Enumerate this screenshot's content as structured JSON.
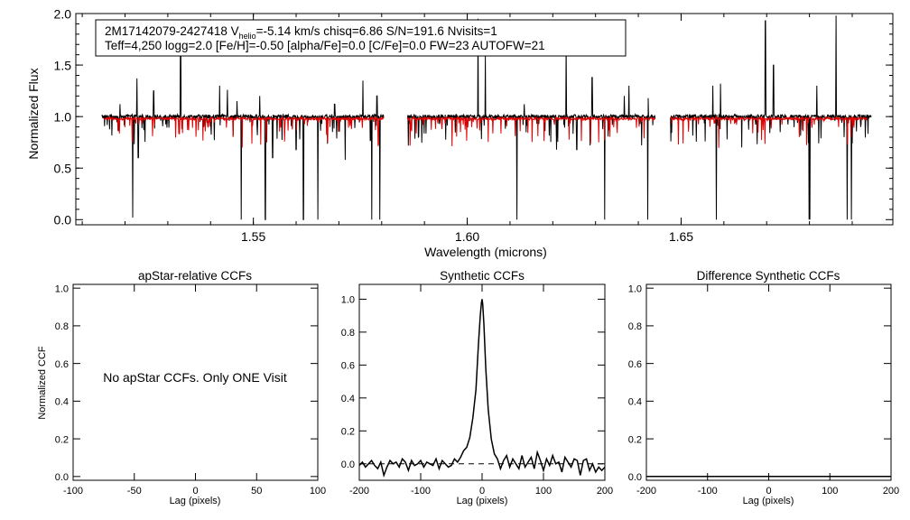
{
  "figure": {
    "info_line1_prefix": "2M17142079-2427418  V",
    "info_line1_sub": "helio",
    "info_line1_suffix": "=-5.14 km/s  chisq=6.86  S/N=191.6  Nvisits=1",
    "info_line2": "Teff=4,250 logg=2.0 [Fe/H]=-0.50 [alpha/Fe]=0.0 [C/Fe]=0.0 FW=23 AUTOFW=21",
    "no_ccf_message": "No apStar CCFs.  Only ONE Visit"
  },
  "chart_data": [
    {
      "id": "spectrum",
      "type": "line",
      "title": "",
      "xlabel": "Wavelength (microns)",
      "ylabel": "Normalized Flux",
      "xlim": [
        1.5085,
        1.6995
      ],
      "ylim": [
        -0.05,
        2.0
      ],
      "xticks": [
        1.55,
        1.6,
        1.65
      ],
      "xtick_labels": [
        "1.55",
        "1.60",
        "1.65"
      ],
      "yticks": [
        0.0,
        0.5,
        1.0,
        1.5,
        2.0
      ],
      "ytick_labels": [
        "0.0",
        "0.5",
        "1.0",
        "1.5",
        "2.0"
      ],
      "chip_ranges": [
        [
          1.5145,
          1.5805
        ],
        [
          1.586,
          1.644
        ],
        [
          1.6475,
          1.6945
        ]
      ],
      "series": [
        {
          "role": "observed",
          "color": "#000000",
          "x_range": [
            1.5145,
            1.6945
          ],
          "continuum": 1.0,
          "noise": 0.02
        },
        {
          "role": "model",
          "color": "#e00000",
          "x_range": [
            1.515,
            1.6935
          ],
          "continuum": 0.98,
          "noise": 0.012
        }
      ],
      "spikes_up": [
        [
          1.5188,
          1.12
        ],
        [
          1.5228,
          1.37
        ],
        [
          1.5267,
          1.25
        ],
        [
          1.533,
          1.68
        ],
        [
          1.5421,
          1.3
        ],
        [
          1.5439,
          1.26
        ],
        [
          1.5462,
          1.15
        ],
        [
          1.5515,
          1.2
        ],
        [
          1.569,
          1.12
        ],
        [
          1.5756,
          1.35
        ],
        [
          1.5789,
          1.2
        ],
        [
          1.6025,
          1.95
        ],
        [
          1.6042,
          1.6
        ],
        [
          1.6133,
          1.12
        ],
        [
          1.6231,
          1.72
        ],
        [
          1.6292,
          1.38
        ],
        [
          1.6367,
          1.2
        ],
        [
          1.6378,
          1.3
        ],
        [
          1.6423,
          1.18
        ],
        [
          1.6574,
          1.3
        ],
        [
          1.6592,
          1.32
        ],
        [
          1.6697,
          1.93
        ],
        [
          1.6716,
          1.5
        ],
        [
          1.6817,
          1.3
        ],
        [
          1.6862,
          1.98
        ],
        [
          1.6888,
          1.88
        ]
      ],
      "spikes_down": [
        [
          1.5218,
          0.02
        ],
        [
          1.5231,
          0.6
        ],
        [
          1.5472,
          0.0
        ],
        [
          1.5528,
          0.0
        ],
        [
          1.5545,
          0.6
        ],
        [
          1.56,
          0.68
        ],
        [
          1.5617,
          0.0
        ],
        [
          1.5651,
          0.0
        ],
        [
          1.5715,
          0.58
        ],
        [
          1.5777,
          0.0
        ],
        [
          1.5796,
          0.0
        ],
        [
          1.5809,
          0.0
        ],
        [
          1.6116,
          0.0
        ],
        [
          1.6209,
          0.68
        ],
        [
          1.6256,
          0.68
        ],
        [
          1.6321,
          0.0
        ],
        [
          1.6422,
          0.0
        ],
        [
          1.6582,
          0.0
        ],
        [
          1.6642,
          0.7
        ],
        [
          1.6799,
          0.0
        ],
        [
          1.6801,
          0.0
        ],
        [
          1.6888,
          0.0
        ],
        [
          1.6898,
          0.0
        ]
      ]
    },
    {
      "id": "apstar-ccf",
      "type": "line",
      "title": "apStar-relative CCFs",
      "xlabel": "Lag (pixels)",
      "ylabel": "Normalized CCF",
      "xlim": [
        -100,
        100
      ],
      "ylim": [
        -0.02,
        1.02
      ],
      "xticks": [
        -100,
        -50,
        0,
        50,
        100
      ],
      "xtick_labels": [
        "-100",
        "-50",
        "0",
        "50",
        "100"
      ],
      "yticks": [
        0.0,
        0.2,
        0.4,
        0.6,
        0.8,
        1.0
      ],
      "ytick_labels": [
        "0.0",
        "0.2",
        "0.4",
        "0.6",
        "0.8",
        "1.0"
      ],
      "series": []
    },
    {
      "id": "synthetic-ccf",
      "type": "line",
      "title": "Synthetic CCFs",
      "xlabel": "Lag (pixels)",
      "ylabel": "",
      "xlim": [
        -200,
        200
      ],
      "ylim": [
        -0.1,
        1.09
      ],
      "xticks": [
        -200,
        -100,
        0,
        100,
        200
      ],
      "xtick_labels": [
        "-200",
        "-100",
        "0",
        "100",
        "200"
      ],
      "yticks": [
        0.0,
        0.2,
        0.4,
        0.6,
        0.8,
        1.0
      ],
      "ytick_labels": [
        "0.0",
        "0.2",
        "0.4",
        "0.6",
        "0.8",
        "1.0"
      ],
      "zero_line": 0.0,
      "series": [
        {
          "color": "#000000",
          "x": [
            -200,
            -195,
            -190,
            -185,
            -180,
            -175,
            -170,
            -165,
            -160,
            -155,
            -150,
            -145,
            -140,
            -135,
            -130,
            -125,
            -120,
            -115,
            -110,
            -105,
            -100,
            -95,
            -90,
            -85,
            -80,
            -75,
            -70,
            -65,
            -60,
            -55,
            -50,
            -45,
            -40,
            -35,
            -30,
            -25,
            -20,
            -15,
            -10,
            -6,
            -3,
            -1,
            0,
            1,
            3,
            6,
            10,
            15,
            20,
            25,
            30,
            35,
            40,
            45,
            50,
            55,
            60,
            65,
            70,
            75,
            80,
            85,
            90,
            95,
            100,
            105,
            110,
            115,
            120,
            125,
            130,
            135,
            140,
            145,
            150,
            155,
            160,
            165,
            170,
            175,
            180,
            185,
            190,
            195,
            200
          ],
          "y": [
            -0.01,
            0.01,
            -0.02,
            0.0,
            0.02,
            -0.01,
            -0.03,
            0.01,
            -0.07,
            -0.02,
            0.02,
            0.0,
            0.01,
            -0.02,
            0.03,
            0.01,
            -0.04,
            0.02,
            -0.01,
            0.0,
            0.02,
            -0.02,
            0.01,
            0.0,
            -0.01,
            0.03,
            -0.03,
            0.02,
            0.0,
            -0.02,
            -0.01,
            0.03,
            0.01,
            0.04,
            0.08,
            0.1,
            0.16,
            0.28,
            0.45,
            0.72,
            0.9,
            0.98,
            1.0,
            0.97,
            0.85,
            0.58,
            0.33,
            0.15,
            0.06,
            0.03,
            -0.03,
            0.02,
            0.05,
            -0.02,
            0.03,
            0.0,
            -0.03,
            0.05,
            -0.02,
            0.01,
            0.04,
            -0.03,
            0.07,
            0.02,
            -0.04,
            0.03,
            -0.01,
            0.05,
            0.0,
            0.01,
            -0.05,
            0.04,
            0.01,
            -0.02,
            0.03,
            0.02,
            -0.07,
            0.02,
            0.03,
            -0.04,
            0.0,
            -0.05,
            -0.02,
            -0.04,
            -0.02
          ]
        }
      ]
    },
    {
      "id": "difference-ccf",
      "type": "line",
      "title": "Difference Synthetic CCFs",
      "xlabel": "Lag (pixels)",
      "ylabel": "",
      "xlim": [
        -200,
        200
      ],
      "ylim": [
        -0.02,
        1.02
      ],
      "xticks": [
        -200,
        -100,
        0,
        100,
        200
      ],
      "xtick_labels": [
        "-200",
        "-100",
        "0",
        "100",
        "200"
      ],
      "yticks": [
        0.0,
        0.2,
        0.4,
        0.6,
        0.8,
        1.0
      ],
      "ytick_labels": [
        "0.0",
        "0.2",
        "0.4",
        "0.6",
        "0.8",
        "1.0"
      ],
      "series": [
        {
          "color": "#000000",
          "x": [
            -200,
            200
          ],
          "y": [
            0.0,
            0.0
          ]
        }
      ]
    }
  ]
}
